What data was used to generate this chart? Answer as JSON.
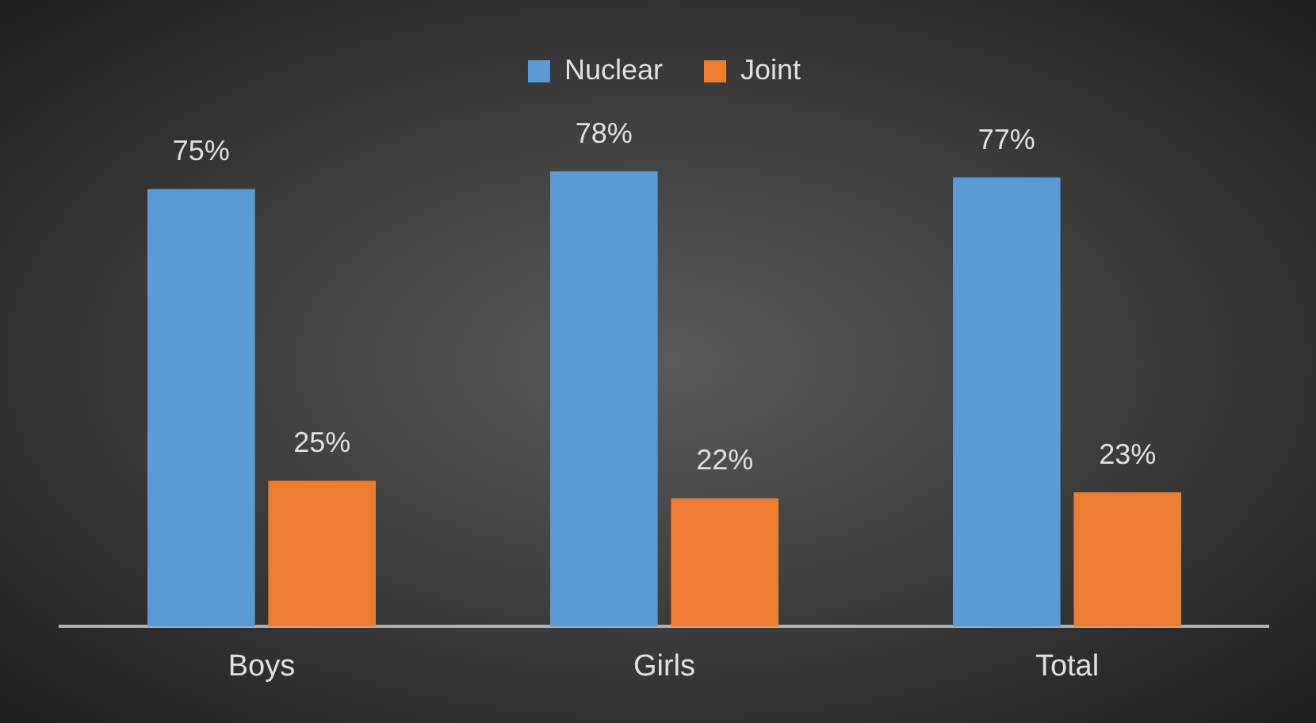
{
  "chart_data": {
    "type": "bar",
    "categories": [
      "Boys",
      "Girls",
      "Total"
    ],
    "series": [
      {
        "name": "Nuclear",
        "color": "#5b9bd5",
        "values": [
          75,
          78,
          77
        ],
        "value_labels": [
          "75%",
          "78%",
          "77%"
        ]
      },
      {
        "name": "Joint",
        "color": "#ed7d31",
        "values": [
          25,
          22,
          23
        ],
        "value_labels": [
          "25%",
          "22%",
          "23%"
        ]
      }
    ],
    "legend": "top",
    "grid": false
  }
}
